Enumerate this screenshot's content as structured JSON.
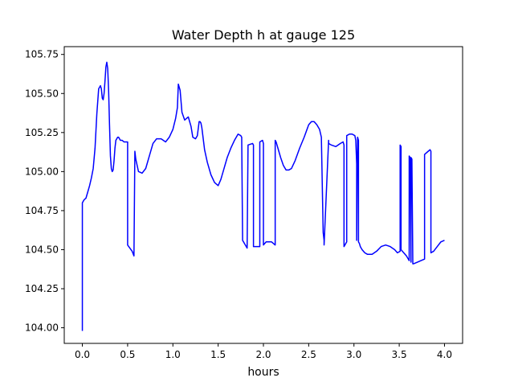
{
  "chart_data": {
    "type": "line",
    "title": "Water Depth h at gauge 125",
    "xlabel": "hours",
    "ylabel": "",
    "xlim": [
      -0.2,
      4.2
    ],
    "ylim": [
      103.9,
      105.8
    ],
    "xticks": [
      0.0,
      0.5,
      1.0,
      1.5,
      2.0,
      2.5,
      3.0,
      3.5,
      4.0
    ],
    "xtick_labels": [
      "0.0",
      "0.5",
      "1.0",
      "1.5",
      "2.0",
      "2.5",
      "3.0",
      "3.5",
      "4.0"
    ],
    "yticks": [
      104.0,
      104.25,
      104.5,
      104.75,
      105.0,
      105.25,
      105.5,
      105.75
    ],
    "ytick_labels": [
      "104.00",
      "104.25",
      "104.50",
      "104.75",
      "105.00",
      "105.25",
      "105.50",
      "105.75"
    ],
    "grid": false,
    "legend": "none",
    "series": [
      {
        "color": "#0000ff",
        "x": [
          0.0,
          0.0,
          0.0,
          0.01,
          0.02,
          0.04,
          0.06,
          0.08,
          0.1,
          0.12,
          0.14,
          0.16,
          0.18,
          0.2,
          0.21,
          0.22,
          0.23,
          0.24,
          0.25,
          0.26,
          0.27,
          0.28,
          0.29,
          0.3,
          0.31,
          0.32,
          0.33,
          0.34,
          0.35,
          0.36,
          0.37,
          0.38,
          0.39,
          0.4,
          0.42,
          0.44,
          0.46,
          0.5,
          0.5,
          0.55,
          0.57,
          0.58,
          0.59,
          0.62,
          0.66,
          0.7,
          0.74,
          0.78,
          0.82,
          0.87,
          0.92,
          0.96,
          1.0,
          1.03,
          1.05,
          1.06,
          1.08,
          1.1,
          1.13,
          1.15,
          1.17,
          1.2,
          1.22,
          1.25,
          1.27,
          1.29,
          1.3,
          1.31,
          1.32,
          1.35,
          1.38,
          1.42,
          1.46,
          1.5,
          1.53,
          1.56,
          1.6,
          1.64,
          1.68,
          1.72,
          1.75,
          1.76,
          1.77,
          1.78,
          1.8,
          1.82,
          1.83,
          1.88,
          1.89,
          1.89,
          1.95,
          1.96,
          1.96,
          1.99,
          2.0,
          2.0,
          2.03,
          2.06,
          2.09,
          2.13,
          2.13,
          2.14,
          2.16,
          2.19,
          2.22,
          2.25,
          2.28,
          2.31,
          2.35,
          2.4,
          2.45,
          2.5,
          2.53,
          2.56,
          2.59,
          2.62,
          2.64,
          2.66,
          2.67,
          2.67,
          2.72,
          2.72,
          2.75,
          2.8,
          2.85,
          2.88,
          2.89,
          2.89,
          2.92,
          2.92,
          2.95,
          2.98,
          3.01,
          3.02,
          3.03,
          3.03,
          3.04,
          3.05,
          3.05,
          3.06,
          3.07,
          3.09,
          3.12,
          3.15,
          3.2,
          3.25,
          3.3,
          3.35,
          3.4,
          3.45,
          3.48,
          3.51,
          3.51,
          3.52,
          3.52,
          3.55,
          3.58,
          3.6,
          3.61,
          3.61,
          3.62,
          3.63,
          3.63,
          3.64,
          3.65,
          3.65,
          3.66,
          3.7,
          3.74,
          3.78,
          3.78,
          3.82,
          3.84,
          3.85,
          3.85,
          3.88,
          3.92,
          3.96,
          4.0
        ],
        "y": [
          103.98,
          104.13,
          104.8,
          104.81,
          104.82,
          104.83,
          104.87,
          104.91,
          104.96,
          105.02,
          105.15,
          105.37,
          105.53,
          105.55,
          105.53,
          105.47,
          105.46,
          105.5,
          105.58,
          105.67,
          105.7,
          105.66,
          105.52,
          105.3,
          105.1,
          105.02,
          105.0,
          105.01,
          105.07,
          105.15,
          105.2,
          105.21,
          105.22,
          105.22,
          105.2,
          105.2,
          105.19,
          105.19,
          104.53,
          104.49,
          104.46,
          105.13,
          105.08,
          105.0,
          104.99,
          105.02,
          105.1,
          105.18,
          105.21,
          105.21,
          105.19,
          105.22,
          105.27,
          105.34,
          105.41,
          105.56,
          105.52,
          105.38,
          105.33,
          105.34,
          105.35,
          105.29,
          105.22,
          105.21,
          105.23,
          105.32,
          105.32,
          105.31,
          105.28,
          105.14,
          105.06,
          104.98,
          104.93,
          104.91,
          104.95,
          105.01,
          105.09,
          105.15,
          105.2,
          105.24,
          105.23,
          105.22,
          104.56,
          104.55,
          104.53,
          104.51,
          105.17,
          105.18,
          105.17,
          104.52,
          104.52,
          104.52,
          105.19,
          105.2,
          105.18,
          104.53,
          104.55,
          104.55,
          104.55,
          104.53,
          105.2,
          105.19,
          105.15,
          105.09,
          105.04,
          105.01,
          105.01,
          105.02,
          105.07,
          105.15,
          105.22,
          105.3,
          105.32,
          105.32,
          105.3,
          105.27,
          105.22,
          104.61,
          104.56,
          104.53,
          105.2,
          105.18,
          105.17,
          105.16,
          105.18,
          105.19,
          105.17,
          104.52,
          104.55,
          105.23,
          105.24,
          105.24,
          105.23,
          105.2,
          105.05,
          104.56,
          105.22,
          105.2,
          104.55,
          104.54,
          104.52,
          104.5,
          104.48,
          104.47,
          104.47,
          104.49,
          104.52,
          104.53,
          104.52,
          104.5,
          104.48,
          104.49,
          105.17,
          105.16,
          104.5,
          104.48,
          104.46,
          104.44,
          104.43,
          105.1,
          105.09,
          104.42,
          105.09,
          105.08,
          104.42,
          104.41,
          104.41,
          104.42,
          104.43,
          104.44,
          105.11,
          105.13,
          105.14,
          105.13,
          104.48,
          104.49,
          104.52,
          104.55,
          104.56
        ]
      }
    ]
  }
}
